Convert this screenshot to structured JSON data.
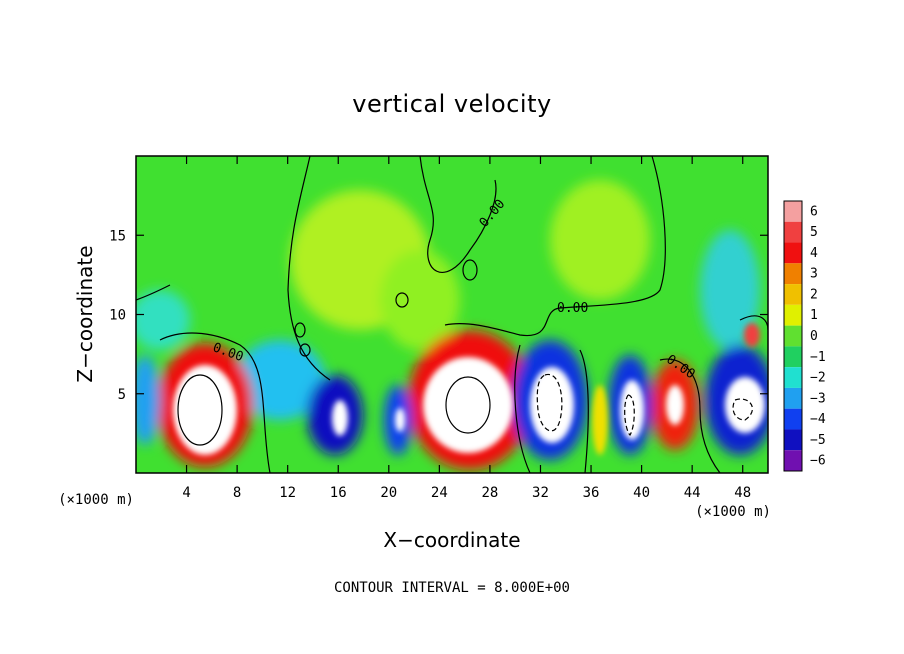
{
  "chart_data": {
    "type": "heatmap",
    "title": "vertical velocity",
    "xlabel": "X−coordinate",
    "ylabel": "Z−coordinate",
    "x_unit": "(×1000 m)",
    "y_unit": "(×1000 m)",
    "xlim": [
      0,
      50
    ],
    "ylim": [
      0,
      20
    ],
    "x_ticks": [
      4,
      8,
      12,
      16,
      20,
      24,
      28,
      32,
      36,
      40,
      44,
      48
    ],
    "y_ticks": [
      5,
      10,
      15
    ],
    "colorbar": {
      "levels": [
        "6",
        "5",
        "4",
        "3",
        "2",
        "1",
        "0",
        "−1",
        "−2",
        "−3",
        "−4",
        "−5",
        "−6"
      ],
      "colors": [
        "#f4a0a0",
        "#f04040",
        "#f01010",
        "#f08000",
        "#f0c000",
        "#e0f000",
        "#60e030",
        "#20d060",
        "#20e0d0",
        "#20a0f0",
        "#1040f0",
        "#1010c0",
        "#7010b0"
      ]
    },
    "contour_labels": [
      "0.00",
      "0.00",
      "0.00",
      "0.00"
    ],
    "footer": "CONTOUR INTERVAL = 8.000E+00",
    "background_color": "#40e030"
  }
}
